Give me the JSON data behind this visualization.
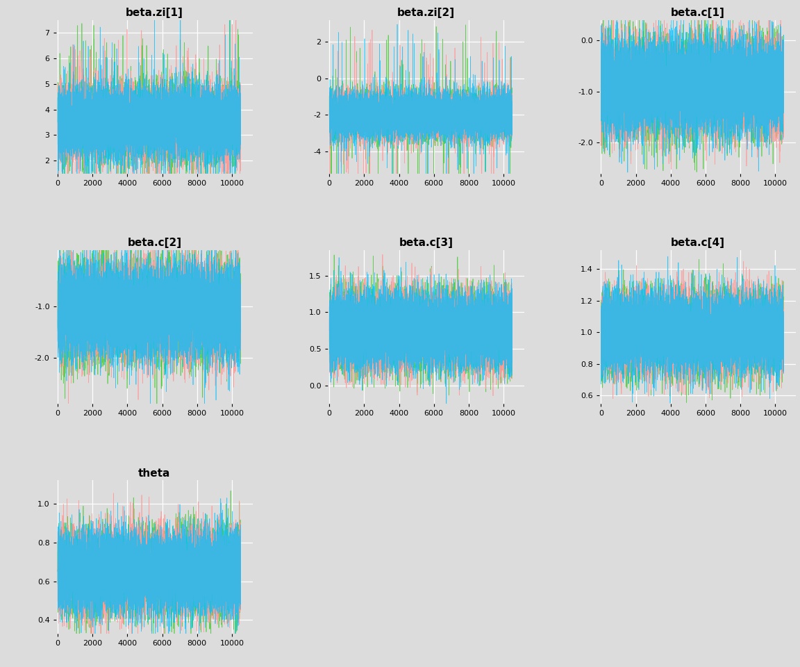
{
  "subplots": [
    {
      "title": "beta.zi[1]",
      "ylim": [
        1.5,
        7.5
      ],
      "yticks": [
        2,
        3,
        4,
        5,
        6,
        7
      ],
      "mean": 3.5,
      "std": 0.65,
      "spike_prob": 0.008,
      "spike_scale": 1.8
    },
    {
      "title": "beta.zi[2]",
      "ylim": [
        -5.2,
        3.2
      ],
      "yticks": [
        -4,
        -2,
        0,
        2
      ],
      "mean": -2.0,
      "std": 0.6,
      "spike_prob": 0.005,
      "spike_scale": 2.5
    },
    {
      "title": "beta.c[1]",
      "ylim": [
        -2.6,
        0.4
      ],
      "yticks": [
        -2.0,
        -1.0,
        0.0
      ],
      "mean": -0.9,
      "std": 0.42,
      "spike_prob": 0.008,
      "spike_scale": 0.9
    },
    {
      "title": "beta.c[2]",
      "ylim": [
        -2.9,
        0.1
      ],
      "yticks": [
        -2.0,
        -1.0
      ],
      "mean": -1.1,
      "std": 0.42,
      "spike_prob": 0.008,
      "spike_scale": 0.9
    },
    {
      "title": "beta.c[3]",
      "ylim": [
        -0.25,
        1.85
      ],
      "yticks": [
        0.0,
        0.5,
        1.0,
        1.5
      ],
      "mean": 0.75,
      "std": 0.25,
      "spike_prob": 0.008,
      "spike_scale": 0.6
    },
    {
      "title": "beta.c[4]",
      "ylim": [
        0.55,
        1.52
      ],
      "yticks": [
        0.6,
        0.8,
        1.0,
        1.2,
        1.4
      ],
      "mean": 1.0,
      "std": 0.12,
      "spike_prob": 0.008,
      "spike_scale": 0.3
    },
    {
      "title": "theta",
      "ylim": [
        0.33,
        1.12
      ],
      "yticks": [
        0.4,
        0.6,
        0.8,
        1.0
      ],
      "mean": 0.65,
      "std": 0.1,
      "spike_prob": 0.008,
      "spike_scale": 0.28
    }
  ],
  "n_iter": 10500,
  "chain_colors_order": [
    "#55CC44",
    "#FF9999",
    "#00BFFF"
  ],
  "bg_color": "#DCDCDC",
  "grid_color": "white",
  "xticks": [
    0,
    2000,
    4000,
    6000,
    8000,
    10000
  ],
  "xlim": [
    -100,
    11200
  ]
}
